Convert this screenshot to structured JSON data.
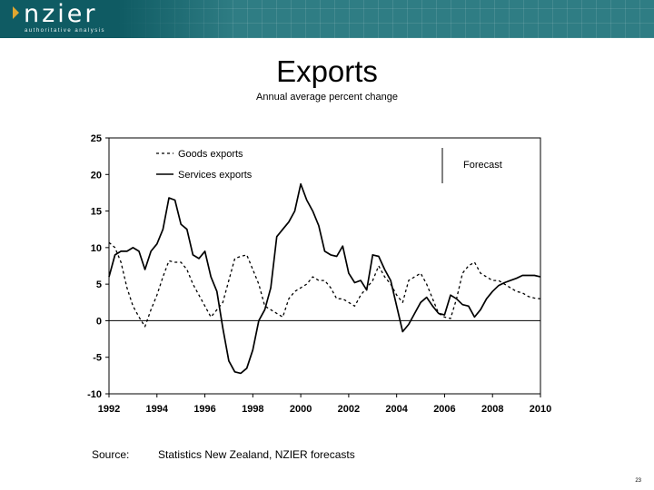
{
  "header": {
    "logo_text": "nzier",
    "tagline": "authoritative analysis"
  },
  "title": "Exports",
  "subtitle": "Annual average percent change",
  "source": {
    "label": "Source:",
    "text": "Statistics New Zealand, NZIER forecasts"
  },
  "page_number": "23",
  "colors": {
    "banner": "#0f5b63",
    "accent": "#e0a630",
    "line": "#000000"
  },
  "chart_data": {
    "type": "line",
    "title": "Exports",
    "subtitle": "Annual average percent change",
    "ylim": [
      -10,
      25
    ],
    "xlim": [
      1992,
      2010
    ],
    "yticks": [
      25,
      20,
      15,
      10,
      5,
      0,
      -5,
      -10
    ],
    "xticks": [
      1992,
      1994,
      1996,
      1998,
      2000,
      2002,
      2004,
      2006,
      2008,
      2010
    ],
    "grid": false,
    "legend_position": "top-left",
    "forecast_start": 2006.75,
    "forecast_label": "Forecast",
    "series": [
      {
        "name": "Goods exports",
        "style": "dashed",
        "x": [
          1992,
          1992.25,
          1992.5,
          1992.75,
          1993,
          1993.25,
          1993.5,
          1993.75,
          1994,
          1994.25,
          1994.5,
          1994.75,
          1995,
          1995.25,
          1995.5,
          1995.75,
          1996,
          1996.25,
          1996.5,
          1996.75,
          1997,
          1997.25,
          1997.5,
          1997.75,
          1998,
          1998.25,
          1998.5,
          1998.75,
          1999,
          1999.25,
          1999.5,
          1999.75,
          2000,
          2000.25,
          2000.5,
          2000.75,
          2001,
          2001.25,
          2001.5,
          2001.75,
          2002,
          2002.25,
          2002.5,
          2002.75,
          2003,
          2003.25,
          2003.5,
          2003.75,
          2004,
          2004.25,
          2004.5,
          2004.75,
          2005,
          2005.25,
          2005.5,
          2005.75,
          2006,
          2006.25,
          2006.5,
          2006.75,
          2007,
          2007.25,
          2007.5,
          2007.75,
          2008,
          2008.25,
          2008.5,
          2008.75,
          2009,
          2009.25,
          2009.5,
          2009.75,
          2010
        ],
        "values": [
          10.7,
          10.0,
          8.0,
          4.5,
          2.0,
          0.5,
          -0.8,
          1.5,
          3.5,
          6.0,
          8.2,
          8.0,
          8.0,
          7.0,
          5.0,
          3.5,
          2.0,
          0.5,
          1.5,
          2.5,
          5.5,
          8.5,
          8.8,
          9.0,
          7.0,
          5.0,
          2.0,
          1.5,
          1.0,
          0.5,
          3.0,
          4.0,
          4.5,
          5.0,
          6.0,
          5.5,
          5.5,
          4.5,
          3.0,
          3.0,
          2.5,
          2.0,
          3.5,
          4.5,
          5.5,
          7.5,
          6.0,
          5.0,
          3.5,
          2.5,
          5.5,
          6.0,
          6.5,
          5.0,
          3.0,
          1.0,
          0.5,
          0.3,
          3.0,
          6.5,
          7.5,
          8.0,
          6.5,
          6.0,
          5.5,
          5.5,
          5.0,
          4.5,
          4.0,
          3.8,
          3.3,
          3.1,
          3.0
        ]
      },
      {
        "name": "Services exports",
        "style": "solid",
        "x": [
          1992,
          1992.25,
          1992.5,
          1992.75,
          1993,
          1993.25,
          1993.5,
          1993.75,
          1994,
          1994.25,
          1994.5,
          1994.75,
          1995,
          1995.25,
          1995.5,
          1995.75,
          1996,
          1996.25,
          1996.5,
          1996.75,
          1997,
          1997.25,
          1997.5,
          1997.75,
          1998,
          1998.25,
          1998.5,
          1998.75,
          1999,
          1999.25,
          1999.5,
          1999.75,
          2000,
          2000.25,
          2000.5,
          2000.75,
          2001,
          2001.25,
          2001.5,
          2001.75,
          2002,
          2002.25,
          2002.5,
          2002.75,
          2003,
          2003.25,
          2003.5,
          2003.75,
          2004,
          2004.25,
          2004.5,
          2004.75,
          2005,
          2005.25,
          2005.5,
          2005.75,
          2006,
          2006.25,
          2006.5,
          2006.75,
          2007,
          2007.25,
          2007.5,
          2007.75,
          2008,
          2008.25,
          2008.5,
          2008.75,
          2009,
          2009.25,
          2009.5,
          2009.75,
          2010
        ],
        "values": [
          6.0,
          9.0,
          9.5,
          9.5,
          10.0,
          9.5,
          7.0,
          9.5,
          10.5,
          12.5,
          16.8,
          16.5,
          13.2,
          12.5,
          9.0,
          8.5,
          9.5,
          6.0,
          4.0,
          -1.0,
          -5.5,
          -7.0,
          -7.2,
          -6.5,
          -4.0,
          0.0,
          1.5,
          4.5,
          11.5,
          12.5,
          13.5,
          15.0,
          18.7,
          16.5,
          15.0,
          13.0,
          9.5,
          9.0,
          8.8,
          10.2,
          6.5,
          5.2,
          5.5,
          4.2,
          9.0,
          8.8,
          7.0,
          5.5,
          2.0,
          -1.5,
          -0.5,
          1.0,
          2.5,
          3.2,
          2.0,
          1.0,
          0.8,
          3.5,
          3.0,
          2.2,
          2.0,
          0.5,
          1.5,
          3.0,
          4.0,
          4.8,
          5.2,
          5.5,
          5.8,
          6.2,
          6.2,
          6.2,
          6.0
        ]
      }
    ]
  }
}
